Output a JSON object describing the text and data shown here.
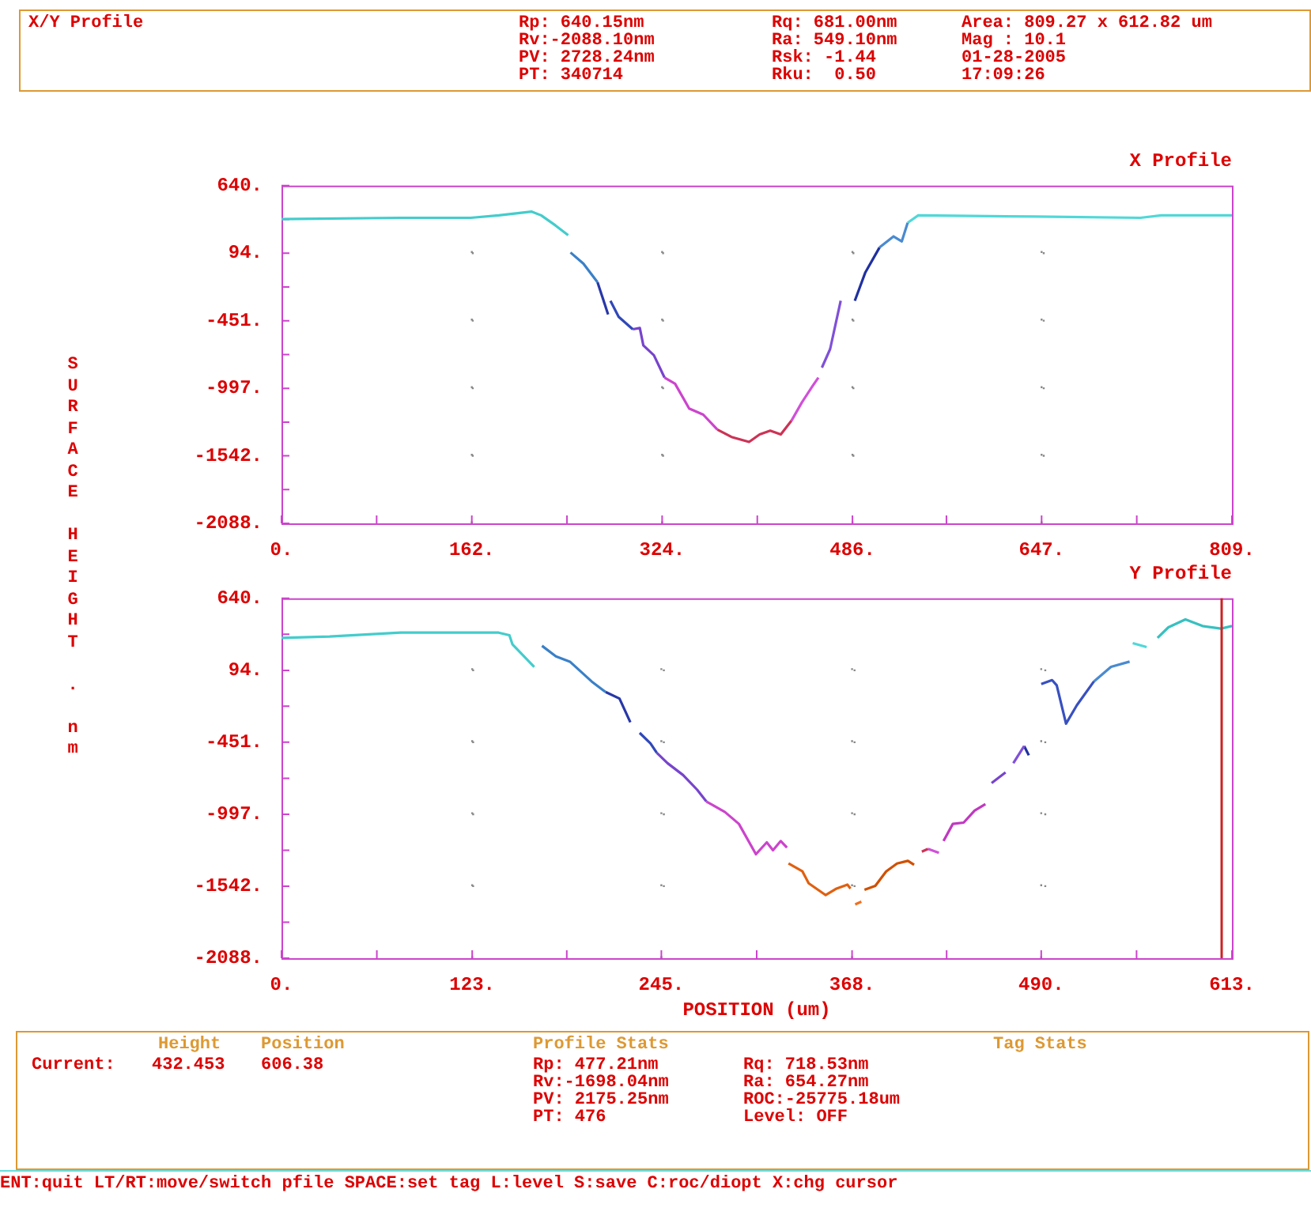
{
  "chart_data": [
    {
      "type": "other",
      "annotations": [
        "X/Y Profile",
        "Rp: 640.15nm\nRv:-2088.10nm\nPV: 2728.24nm\nPT: 340714",
        "Rq: 681.00nm\nRa: 549.10nm\nRsk: -1.44\nRku:  0.50",
        "Area: 809.27 x 612.82 um\nMag : 10.1\n01-28-2005\n17:09:26"
      ]
    },
    {
      "type": "line",
      "title": "X Profile",
      "ylabel": "SURFACE HEIGHT . nm",
      "grid": true,
      "legend": false,
      "xlim": [
        0,
        809
      ],
      "xticks": [
        {
          "value": 0,
          "label": "0."
        },
        {
          "value": 81,
          "label": null
        },
        {
          "value": 162,
          "label": "162."
        },
        {
          "value": 243,
          "label": null
        },
        {
          "value": 324,
          "label": "324."
        },
        {
          "value": 405,
          "label": null
        },
        {
          "value": 486,
          "label": "486."
        },
        {
          "value": 566,
          "label": null
        },
        {
          "value": 647,
          "label": "647."
        },
        {
          "value": 728,
          "label": null
        },
        {
          "value": 809,
          "label": "809."
        }
      ],
      "ylim": [
        -2088,
        640
      ],
      "yticks": [
        {
          "value": -2088,
          "label": "-2088."
        },
        {
          "value": -1815,
          "label": null
        },
        {
          "value": -1542,
          "label": "-1542."
        },
        {
          "value": -1270,
          "label": null
        },
        {
          "value": -997,
          "label": "-997."
        },
        {
          "value": -724,
          "label": null
        },
        {
          "value": -451,
          "label": "-451."
        },
        {
          "value": -178,
          "label": null
        },
        {
          "value": 94,
          "label": "94."
        },
        {
          "value": 367,
          "label": null
        },
        {
          "value": 640,
          "label": "640."
        }
      ],
      "series": [
        {
          "color": "#44cccc",
          "x": [
            0,
            101,
            161,
            185,
            213,
            221,
            233,
            244
          ],
          "values": [
            370,
            380,
            380,
            400,
            430,
            400,
            320,
            240
          ]
        },
        {
          "color": "#3a80c8",
          "x": [
            246,
            257,
            269
          ],
          "values": [
            100,
            10,
            -140
          ]
        },
        {
          "color": "#2838a8",
          "x": [
            269,
            278
          ],
          "values": [
            -140,
            -400
          ]
        },
        {
          "color": "#3048b8",
          "x": [
            280,
            287,
            299
          ],
          "values": [
            -290,
            -420,
            -520
          ]
        },
        {
          "color": "#7744cc",
          "x": [
            299,
            305,
            308,
            317,
            326
          ],
          "values": [
            -520,
            -510,
            -650,
            -730,
            -910
          ]
        },
        {
          "color": "#cc44cc",
          "x": [
            326,
            335,
            347,
            359,
            371
          ],
          "values": [
            -910,
            -960,
            -1160,
            -1210,
            -1330
          ]
        },
        {
          "color": "#cc3355",
          "x": [
            371,
            383,
            398,
            407,
            416,
            425,
            434
          ],
          "values": [
            -1330,
            -1390,
            -1430,
            -1370,
            -1340,
            -1370,
            -1260
          ]
        },
        {
          "color": "#d050d8",
          "x": [
            434,
            443,
            452,
            457
          ],
          "values": [
            -1260,
            -1110,
            -980,
            -910
          ]
        },
        {
          "color": "#8050d8",
          "x": [
            460,
            467,
            476
          ],
          "values": [
            -830,
            -680,
            -290
          ]
        },
        {
          "color": "#2030a0",
          "x": [
            488,
            497,
            509
          ],
          "values": [
            -290,
            -60,
            140
          ]
        },
        {
          "color": "#4a8ad0",
          "x": [
            509,
            521,
            528,
            533
          ],
          "values": [
            140,
            230,
            190,
            340
          ]
        },
        {
          "color": "#50d8d8",
          "x": [
            533,
            542,
            641,
            731,
            749,
            809
          ],
          "values": [
            340,
            400,
            390,
            380,
            400,
            400
          ]
        }
      ]
    },
    {
      "type": "line",
      "title": "Y Profile",
      "xlabel": "POSITION (um)",
      "grid": true,
      "legend": false,
      "xlim": [
        0,
        613
      ],
      "xticks": [
        {
          "value": 0,
          "label": "0."
        },
        {
          "value": 61.5,
          "label": null
        },
        {
          "value": 123,
          "label": "123."
        },
        {
          "value": 184,
          "label": null
        },
        {
          "value": 245,
          "label": "245."
        },
        {
          "value": 306.5,
          "label": null
        },
        {
          "value": 368,
          "label": "368."
        },
        {
          "value": 429,
          "label": null
        },
        {
          "value": 490,
          "label": "490."
        },
        {
          "value": 551.5,
          "label": null
        },
        {
          "value": 613,
          "label": "613."
        }
      ],
      "ylim": [
        -2088,
        640
      ],
      "yticks": [
        {
          "value": -2088,
          "label": "-2088."
        },
        {
          "value": -1815,
          "label": null
        },
        {
          "value": -1542,
          "label": "-1542."
        },
        {
          "value": -1270,
          "label": null
        },
        {
          "value": -997,
          "label": "-997."
        },
        {
          "value": -724,
          "label": null
        },
        {
          "value": -451,
          "label": "-451."
        },
        {
          "value": -178,
          "label": null
        },
        {
          "value": 94,
          "label": "94."
        },
        {
          "value": 367,
          "label": null
        },
        {
          "value": 640,
          "label": "640."
        }
      ],
      "ref_lines": [
        {
          "axis": "x",
          "value": 606.38,
          "color": "#cc2222"
        }
      ],
      "series": [
        {
          "color": "#44cccc",
          "x": [
            0,
            31,
            77,
            140,
            147,
            149,
            163
          ],
          "values": [
            340,
            350,
            380,
            380,
            360,
            290,
            120
          ]
        },
        {
          "color": "#3a80c8",
          "x": [
            168,
            177,
            186,
            200,
            209
          ],
          "values": [
            280,
            200,
            160,
            10,
            -70
          ]
        },
        {
          "color": "#2838a8",
          "x": [
            209,
            218,
            225
          ],
          "values": [
            -70,
            -120,
            -300
          ]
        },
        {
          "color": "#3048b8",
          "x": [
            231,
            238,
            242
          ],
          "values": [
            -380,
            -460,
            -530
          ]
        },
        {
          "color": "#7744cc",
          "x": [
            242,
            249,
            259,
            268,
            274
          ],
          "values": [
            -530,
            -610,
            -700,
            -810,
            -900
          ]
        },
        {
          "color": "#cc44cc",
          "x": [
            274,
            286,
            295,
            306,
            313,
            317,
            322,
            326
          ],
          "values": [
            -900,
            -980,
            -1070,
            -1300,
            -1210,
            -1270,
            -1200,
            -1250
          ]
        },
        {
          "color": "#e06010",
          "x": [
            327,
            336,
            340,
            351,
            358,
            365,
            367
          ],
          "values": [
            -1370,
            -1430,
            -1520,
            -1610,
            -1560,
            -1530,
            -1560
          ]
        },
        {
          "color": "#f07020",
          "x": [
            370,
            374
          ],
          "values": [
            -1680,
            -1660
          ]
        },
        {
          "color": "#d05000",
          "x": [
            376,
            383,
            390,
            397,
            404,
            408
          ],
          "values": [
            -1570,
            -1540,
            -1430,
            -1370,
            -1350,
            -1380
          ]
        },
        {
          "color": "#cc3355",
          "x": [
            413,
            417
          ],
          "values": [
            -1280,
            -1260
          ]
        },
        {
          "color": "#d050d8",
          "x": [
            417,
            424
          ],
          "values": [
            -1260,
            -1290
          ]
        },
        {
          "color": "#c038c0",
          "x": [
            427,
            433,
            440,
            447,
            454
          ],
          "values": [
            -1200,
            -1070,
            -1060,
            -970,
            -920
          ]
        },
        {
          "color": "#7744cc",
          "x": [
            458,
            467
          ],
          "values": [
            -760,
            -680
          ]
        },
        {
          "color": "#8050d8",
          "x": [
            472,
            479
          ],
          "values": [
            -610,
            -480
          ]
        },
        {
          "color": "#2030a0",
          "x": [
            479,
            482
          ],
          "values": [
            -480,
            -550
          ]
        },
        {
          "color": "#3850c0",
          "x": [
            490,
            497,
            500,
            506,
            513,
            524
          ],
          "values": [
            -10,
            20,
            -20,
            -310,
            -170,
            10
          ]
        },
        {
          "color": "#4a8ad0",
          "x": [
            524,
            535,
            547
          ],
          "values": [
            10,
            120,
            160
          ]
        },
        {
          "color": "#50d8d8",
          "x": [
            549,
            558
          ],
          "values": [
            300,
            270
          ]
        },
        {
          "color": "#38c0c0",
          "x": [
            565,
            572,
            583,
            594,
            606,
            613
          ],
          "values": [
            340,
            420,
            480,
            430,
            410,
            430
          ]
        }
      ]
    },
    {
      "type": "other",
      "annotations": [
        "Height",
        "Position",
        "Profile Stats",
        "Tag Stats",
        "Current:",
        "432.453",
        "606.38",
        "Rp: 477.21nm\nRv:-1698.04nm\nPV: 2175.25nm\nPT: 476",
        "Rq: 718.53nm\nRa: 654.27nm\nROC:-25775.18um\nLevel: OFF",
        "ENT:quit LT/RT:move/switch pfile SPACE:set tag L:level S:save C:roc/diopt X:chg cursor"
      ]
    }
  ]
}
